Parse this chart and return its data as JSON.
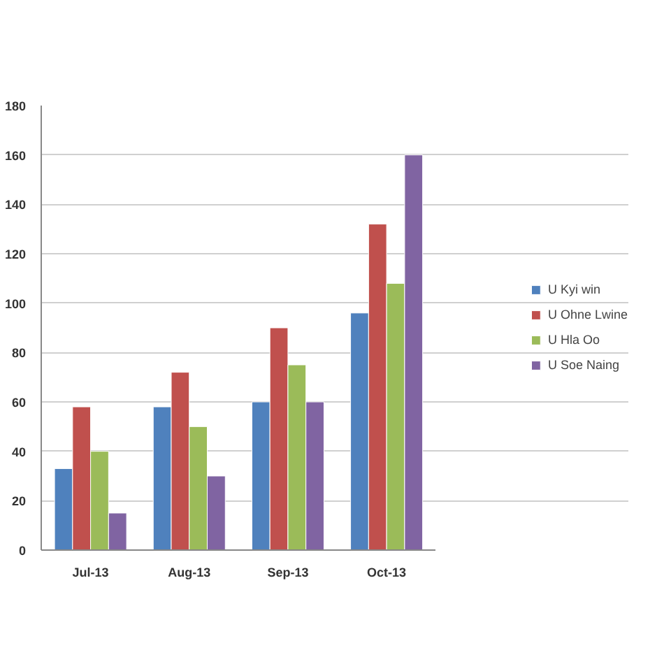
{
  "chart_data": {
    "type": "bar",
    "categories": [
      "Jul-13",
      "Aug-13",
      "Sep-13",
      "Oct-13"
    ],
    "series": [
      {
        "name": "U Kyi win",
        "color": "#4f81bd",
        "values": [
          33,
          58,
          60,
          96
        ]
      },
      {
        "name": "U Ohne Lwine",
        "color": "#c0504d",
        "values": [
          58,
          72,
          90,
          132
        ]
      },
      {
        "name": "U Hla Oo",
        "color": "#9bbb59",
        "values": [
          40,
          50,
          75,
          108
        ]
      },
      {
        "name": "U Soe Naing",
        "color": "#8064a2",
        "values": [
          15,
          30,
          60,
          160
        ]
      }
    ],
    "ylim": [
      0,
      180
    ],
    "yticks": [
      0,
      20,
      40,
      60,
      80,
      100,
      120,
      140,
      160,
      180
    ],
    "grid": "y",
    "legend": "right"
  }
}
